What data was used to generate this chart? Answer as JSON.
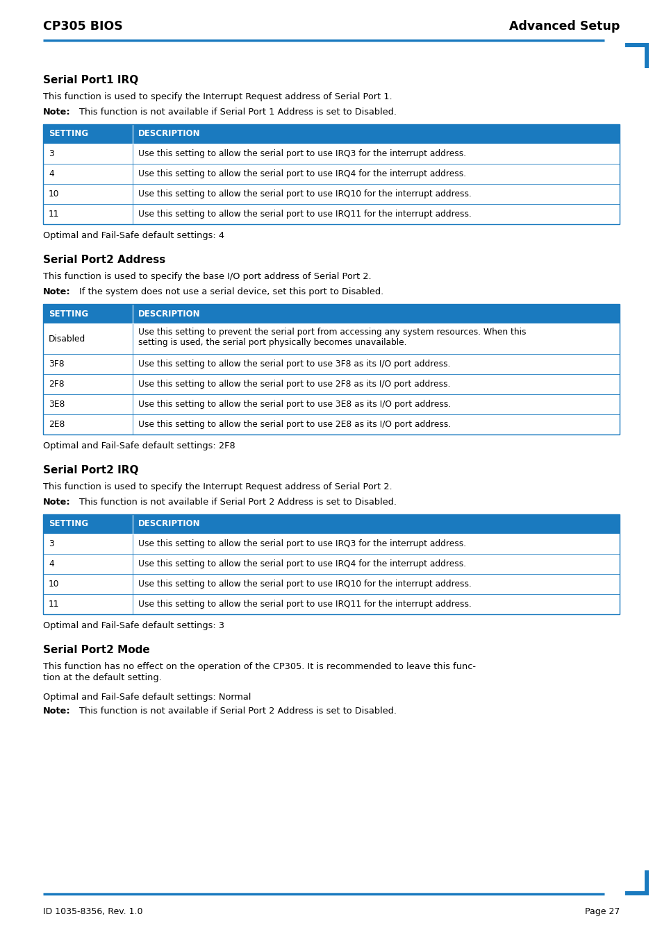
{
  "header_left": "CP305 BIOS",
  "header_right": "Advanced Setup",
  "footer_left": "ID 1035-8356, Rev. 1.0",
  "footer_right": "Page 27",
  "line_color": "#1a7abf",
  "table_header_bg": "#1a7abf",
  "table_border_color": "#1a7abf",
  "corner_color": "#1a7abf",
  "sections": [
    {
      "title": "Serial Port1 IRQ",
      "intro": "This function is used to specify the Interrupt Request address of Serial Port 1.",
      "note": "This function is not available if Serial Port 1 Address is set to Disabled.",
      "table": {
        "col1_header": "SETTING",
        "col2_header": "DESCRIPTION",
        "rows": [
          [
            "3",
            "Use this setting to allow the serial port to use IRQ3 for the interrupt address."
          ],
          [
            "4",
            "Use this setting to allow the serial port to use IRQ4 for the interrupt address."
          ],
          [
            "10",
            "Use this setting to allow the serial port to use IRQ10 for the interrupt address."
          ],
          [
            "11",
            "Use this setting to allow the serial port to use IRQ11 for the interrupt address."
          ]
        ]
      },
      "default": "Optimal and Fail-Safe default settings: 4"
    },
    {
      "title": "Serial Port2 Address",
      "intro": "This function is used to specify the base I/O port address of Serial Port 2.",
      "note": "If the system does not use a serial device, set this port to Disabled.",
      "table": {
        "col1_header": "SETTING",
        "col2_header": "DESCRIPTION",
        "rows": [
          [
            "Disabled",
            "Use this setting to prevent the serial port from accessing any system resources. When this\nsetting is used, the serial port physically becomes unavailable."
          ],
          [
            "3F8",
            "Use this setting to allow the serial port to use 3F8 as its I/O port address."
          ],
          [
            "2F8",
            "Use this setting to allow the serial port to use 2F8 as its I/O port address."
          ],
          [
            "3E8",
            "Use this setting to allow the serial port to use 3E8 as its I/O port address."
          ],
          [
            "2E8",
            "Use this setting to allow the serial port to use 2E8 as its I/O port address."
          ]
        ]
      },
      "default": "Optimal and Fail-Safe default settings: 2F8"
    },
    {
      "title": "Serial Port2 IRQ",
      "intro": "This function is used to specify the Interrupt Request address of Serial Port 2.",
      "note": "This function is not available if Serial Port 2 Address is set to Disabled.",
      "table": {
        "col1_header": "SETTING",
        "col2_header": "DESCRIPTION",
        "rows": [
          [
            "3",
            "Use this setting to allow the serial port to use IRQ3 for the interrupt address."
          ],
          [
            "4",
            "Use this setting to allow the serial port to use IRQ4 for the interrupt address."
          ],
          [
            "10",
            "Use this setting to allow the serial port to use IRQ10 for the interrupt address."
          ],
          [
            "11",
            "Use this setting to allow the serial port to use IRQ11 for the interrupt address."
          ]
        ]
      },
      "default": "Optimal and Fail-Safe default settings: 3"
    },
    {
      "title": "Serial Port2 Mode",
      "intro_lines": [
        "This function has no effect on the operation of the CP305. It is recommended to leave this func-",
        "tion at the default setting."
      ],
      "note": null,
      "table": null,
      "default": "Optimal and Fail-Safe default settings: Normal",
      "extra_note": "This function is not available if Serial Port 2 Address is set to Disabled."
    }
  ]
}
